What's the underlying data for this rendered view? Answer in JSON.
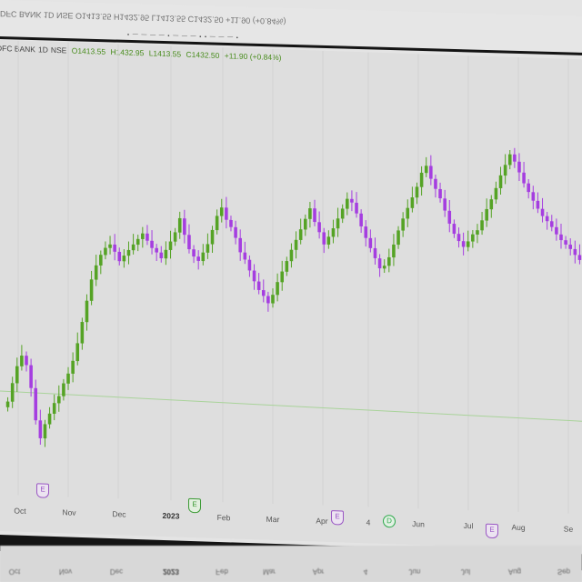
{
  "legend": {
    "symbol": "DFC BANK",
    "interval": "1D",
    "exchange": "NSE",
    "open": "O1413.55",
    "high": "H1432.95",
    "low": "L1413.55",
    "close": "C1432.50",
    "change": "+11.90 (+0.84%)"
  },
  "ghost": {
    "legend_text": "DFC BANK 1D NSE O1413.55 H1432.95 L1413.55 C1432.50 +11.90 (+0.84%)"
  },
  "colors": {
    "up": "#55a325",
    "down": "#a53ee0",
    "reference_line": "#a9d39a"
  },
  "x_axis": {
    "labels": [
      "Oct",
      "Nov",
      "Dec",
      "2023",
      "Feb",
      "Mar",
      "Apr",
      "4",
      "Jun",
      "Jul",
      "Aug",
      "Se"
    ],
    "bold_label": "2023"
  },
  "bottom_axis": {
    "labels": [
      "Oct",
      "Nov",
      "Dec",
      "2023",
      "Feb",
      "Mar",
      "Apr",
      "4",
      "Jun",
      "Jul",
      "Aug",
      "Sep"
    ]
  },
  "events": [
    {
      "glyph": "E",
      "kind": "earnings"
    },
    {
      "glyph": "E",
      "kind": "earnings-green"
    },
    {
      "glyph": "E",
      "kind": "earnings"
    },
    {
      "glyph": "D",
      "kind": "dividend"
    },
    {
      "glyph": "E",
      "kind": "earnings"
    }
  ],
  "chart_data": {
    "type": "candlestick",
    "series": [
      {
        "values": [
          1230,
          1256,
          1280,
          1295,
          1282,
          1250,
          1205,
          1180,
          1200,
          1215,
          1230,
          1240,
          1258,
          1272,
          1290,
          1315,
          1345,
          1375,
          1405,
          1425,
          1440,
          1450,
          1455,
          1445,
          1432,
          1440,
          1448,
          1456,
          1464,
          1472,
          1462,
          1452,
          1446,
          1438,
          1450,
          1462,
          1475,
          1495,
          1472,
          1452,
          1442,
          1436,
          1448,
          1460,
          1480,
          1500,
          1512,
          1495,
          1485,
          1470,
          1450,
          1440,
          1425,
          1410,
          1398,
          1390,
          1380,
          1392,
          1410,
          1425,
          1440,
          1456,
          1470,
          1485,
          1500,
          1515,
          1496,
          1482,
          1465,
          1476,
          1488,
          1502,
          1516,
          1530,
          1525,
          1510,
          1492,
          1476,
          1462,
          1448,
          1434,
          1438,
          1450,
          1468,
          1488,
          1505,
          1520,
          1535,
          1550,
          1570,
          1580,
          1562,
          1548,
          1535,
          1518,
          1500,
          1486,
          1476,
          1468,
          1476,
          1486,
          1492,
          1506,
          1522,
          1536,
          1552,
          1570,
          1585,
          1600,
          1590,
          1575,
          1560,
          1548,
          1536,
          1525,
          1515,
          1508,
          1500,
          1490,
          1482,
          1476,
          1470,
          1462,
          1455
        ]
      }
    ]
  }
}
